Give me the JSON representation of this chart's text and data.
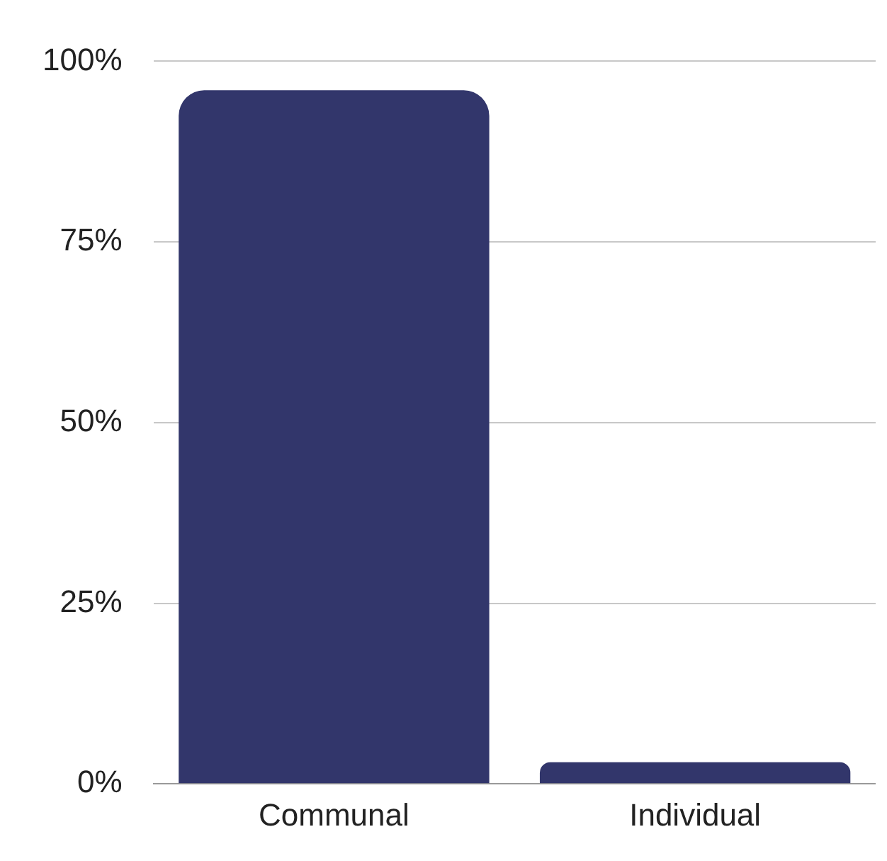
{
  "chart_data": {
    "type": "bar",
    "categories": [
      "Communal",
      "Individual"
    ],
    "values": [
      96,
      3
    ],
    "color": "#32366b",
    "ylim": [
      0,
      100
    ],
    "yticks": [
      {
        "value": 0,
        "label": "0%"
      },
      {
        "value": 25,
        "label": "25%"
      },
      {
        "value": 50,
        "label": "50%"
      },
      {
        "value": 75,
        "label": "75%"
      },
      {
        "value": 100,
        "label": "100%"
      }
    ],
    "grid": "y",
    "legend": false
  }
}
